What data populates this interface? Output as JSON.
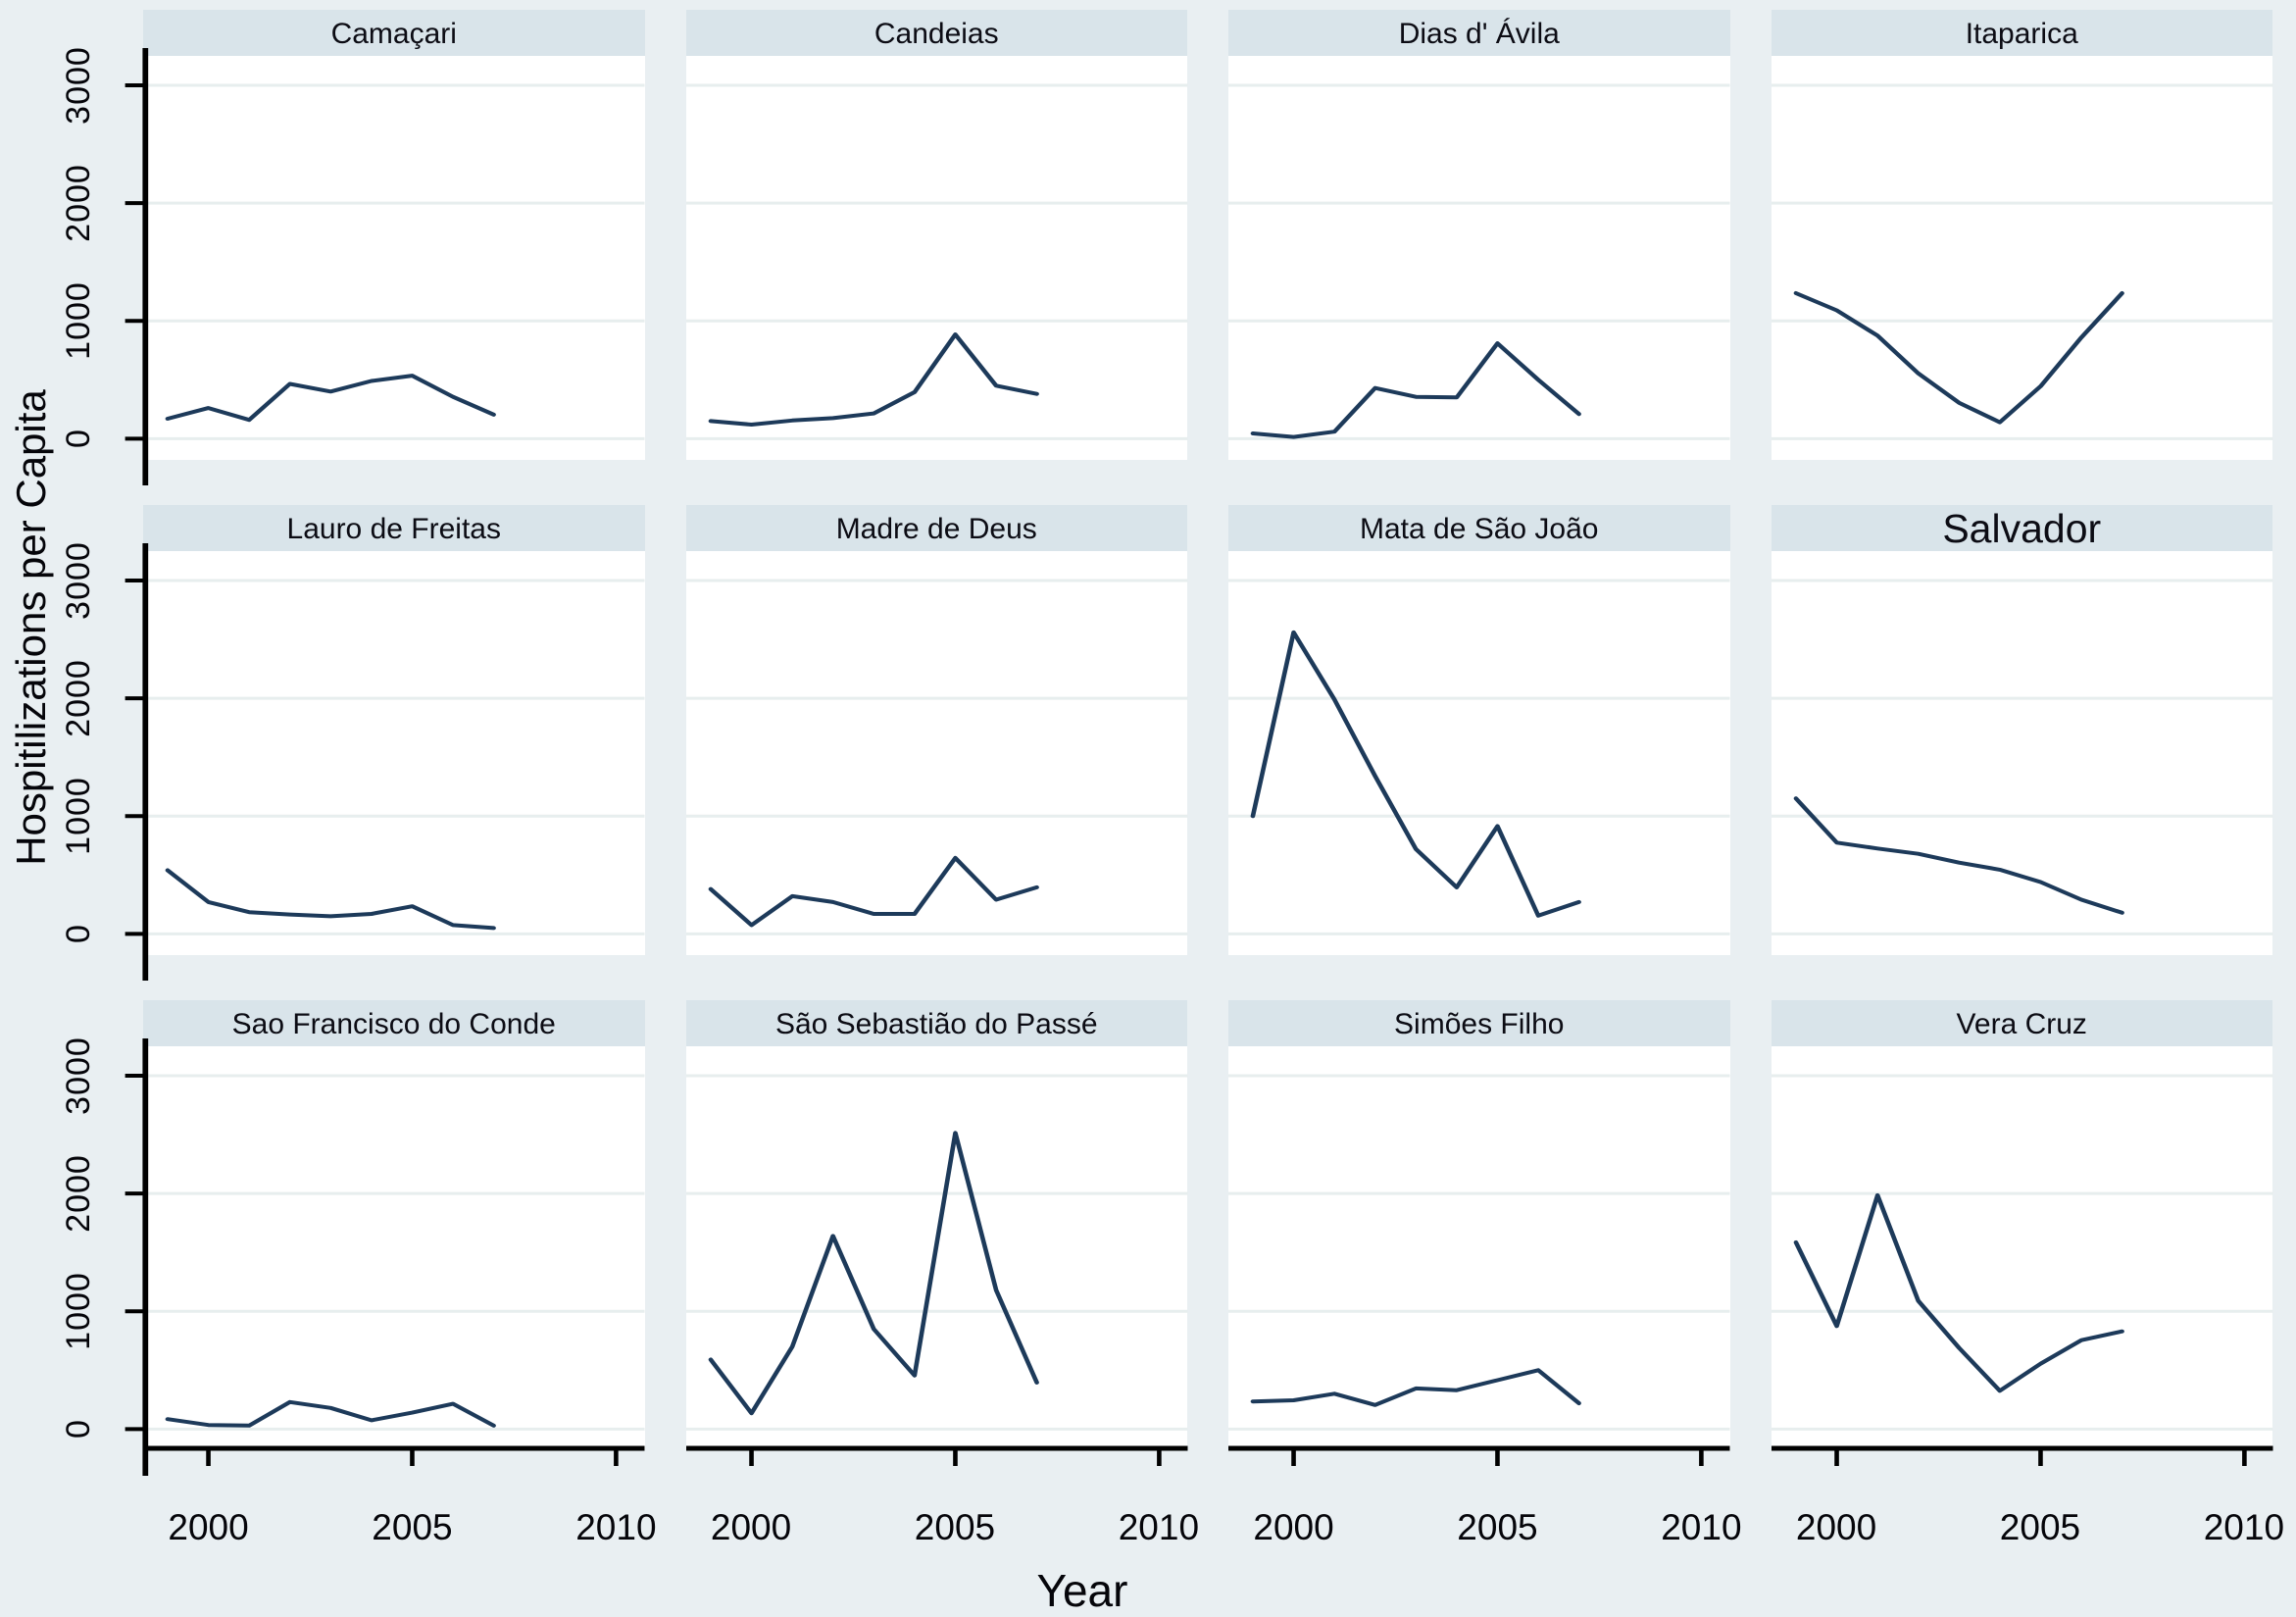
{
  "chart_data": {
    "type": "line",
    "layout": {
      "rows": 3,
      "cols": 4,
      "style": "small-multiples trellis, one panel per municipality"
    },
    "xlabel": "Year",
    "ylabel": "Hospitilizations per Capita",
    "x": [
      1999,
      2000,
      2001,
      2002,
      2003,
      2004,
      2005,
      2006,
      2007
    ],
    "x_tick_values": [
      2000,
      2005,
      2010
    ],
    "y_tick_values": [
      0,
      1000,
      2000,
      3000
    ],
    "xlim": [
      1998.4,
      2010.7
    ],
    "ylim": [
      -180,
      3250
    ],
    "grid": true,
    "legend": "none",
    "colors": {
      "line": "#1d3a5a",
      "grid": "#e7eeee",
      "axis": "#000000",
      "panel_header_bg": "#d9e4ea",
      "plot_bg": "#ffffff",
      "page_bg": "#e9eff2"
    },
    "panels": [
      {
        "title": "Camaçari",
        "values": [
          170,
          260,
          160,
          465,
          400,
          490,
          535,
          355,
          205
        ]
      },
      {
        "title": "Candeias",
        "values": [
          150,
          120,
          155,
          175,
          215,
          395,
          885,
          450,
          380
        ]
      },
      {
        "title": "Dias d' Ávila",
        "values": [
          45,
          15,
          60,
          430,
          355,
          350,
          810,
          500,
          210
        ]
      },
      {
        "title": "Itaparica",
        "values": [
          1235,
          1090,
          875,
          555,
          305,
          140,
          445,
          860,
          1235
        ]
      },
      {
        "title": "Lauro de Freitas",
        "values": [
          540,
          270,
          185,
          165,
          150,
          170,
          235,
          75,
          50
        ]
      },
      {
        "title": "Madre de Deus",
        "values": [
          380,
          75,
          320,
          270,
          170,
          170,
          645,
          290,
          395
        ]
      },
      {
        "title": "Mata de São João",
        "values": [
          1000,
          2560,
          1990,
          1340,
          720,
          395,
          915,
          155,
          270
        ]
      },
      {
        "title": "Salvador",
        "title_large": true,
        "values": [
          1150,
          775,
          725,
          680,
          605,
          545,
          440,
          290,
          180
        ]
      },
      {
        "title": "Sao Francisco do Conde",
        "values": [
          85,
          35,
          30,
          230,
          180,
          75,
          140,
          215,
          30
        ]
      },
      {
        "title": "São Sebastião do Passé",
        "values": [
          590,
          135,
          700,
          1640,
          850,
          455,
          2515,
          1180,
          395
        ]
      },
      {
        "title": "Simões Filho",
        "values": [
          235,
          245,
          300,
          205,
          345,
          330,
          415,
          500,
          220
        ]
      },
      {
        "title": "Vera Cruz",
        "values": [
          1585,
          875,
          1985,
          1090,
          690,
          325,
          555,
          755,
          830
        ]
      }
    ]
  }
}
